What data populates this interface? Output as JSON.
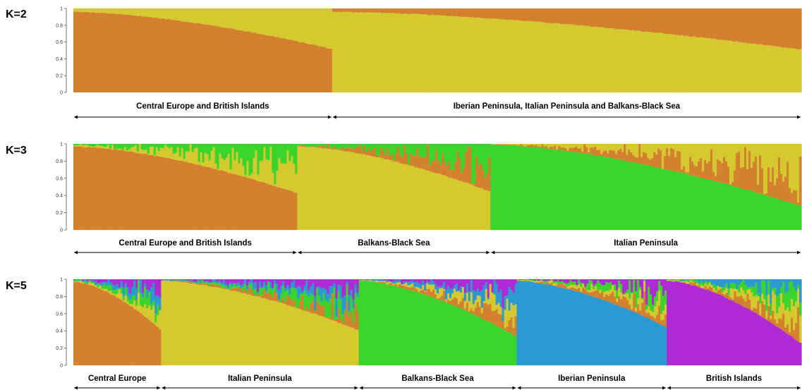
{
  "colors": {
    "orange": "#D3812F",
    "yellow": "#D5C92F",
    "green": "#3BD42A",
    "blue": "#2A9AD0",
    "purple": "#AE2AD4"
  },
  "chart_data": [
    {
      "type": "bar",
      "subtype": "stacked-admixture",
      "label": "K=2",
      "ylim": [
        0,
        1
      ],
      "yticks": [
        "0",
        "0.2",
        "0.4",
        "0.6",
        "0.8",
        "1"
      ],
      "groups": [
        {
          "label": "Central Europe and British Islands",
          "proportion": 0.3555,
          "dominant": "orange",
          "ancestry_start": 0.96,
          "ancestry_end": 0.52
        },
        {
          "label": "Iberian Peninsula, Italian Peninsula and Balkans-Black Sea",
          "proportion": 0.6445,
          "dominant": "yellow",
          "ancestry_start": 0.96,
          "ancestry_end": 0.51
        }
      ]
    },
    {
      "type": "bar",
      "subtype": "stacked-admixture",
      "label": "K=3",
      "ylim": [
        0,
        1
      ],
      "yticks": [
        "0",
        "0.2",
        "0.4",
        "0.6",
        "0.8",
        "1"
      ],
      "groups": [
        {
          "label": "Central Europe and British Islands",
          "proportion": 0.3075,
          "dominant": "orange",
          "ancestry_start": 0.97,
          "ancestry_end": 0.43
        },
        {
          "label": "Balkans-Black Sea",
          "proportion": 0.2655,
          "dominant": "yellow",
          "ancestry_start": 0.97,
          "ancestry_end": 0.45
        },
        {
          "label": "Italian Peninsula",
          "proportion": 0.427,
          "dominant": "green",
          "ancestry_start": 0.99,
          "ancestry_end": 0.28
        }
      ]
    },
    {
      "type": "bar",
      "subtype": "stacked-admixture",
      "label": "K=5",
      "ylim": [
        0,
        1
      ],
      "yticks": [
        "0",
        "0.2",
        "0.4",
        "0.6",
        "0.8",
        "1"
      ],
      "groups": [
        {
          "label": "Central Europe",
          "proportion": 0.1205,
          "dominant": "orange",
          "ancestry_start": 0.97,
          "ancestry_end": 0.42
        },
        {
          "label": "Italian Peninsula",
          "proportion": 0.2715,
          "dominant": "yellow",
          "ancestry_start": 0.98,
          "ancestry_end": 0.41
        },
        {
          "label": "Balkans-Black Sea",
          "proportion": 0.217,
          "dominant": "green",
          "ancestry_start": 0.98,
          "ancestry_end": 0.34
        },
        {
          "label": "Iberian Peninsula",
          "proportion": 0.206,
          "dominant": "blue",
          "ancestry_start": 0.98,
          "ancestry_end": 0.45
        },
        {
          "label": "British Islands",
          "proportion": 0.185,
          "dominant": "purple",
          "ancestry_start": 0.98,
          "ancestry_end": 0.26
        }
      ]
    }
  ]
}
